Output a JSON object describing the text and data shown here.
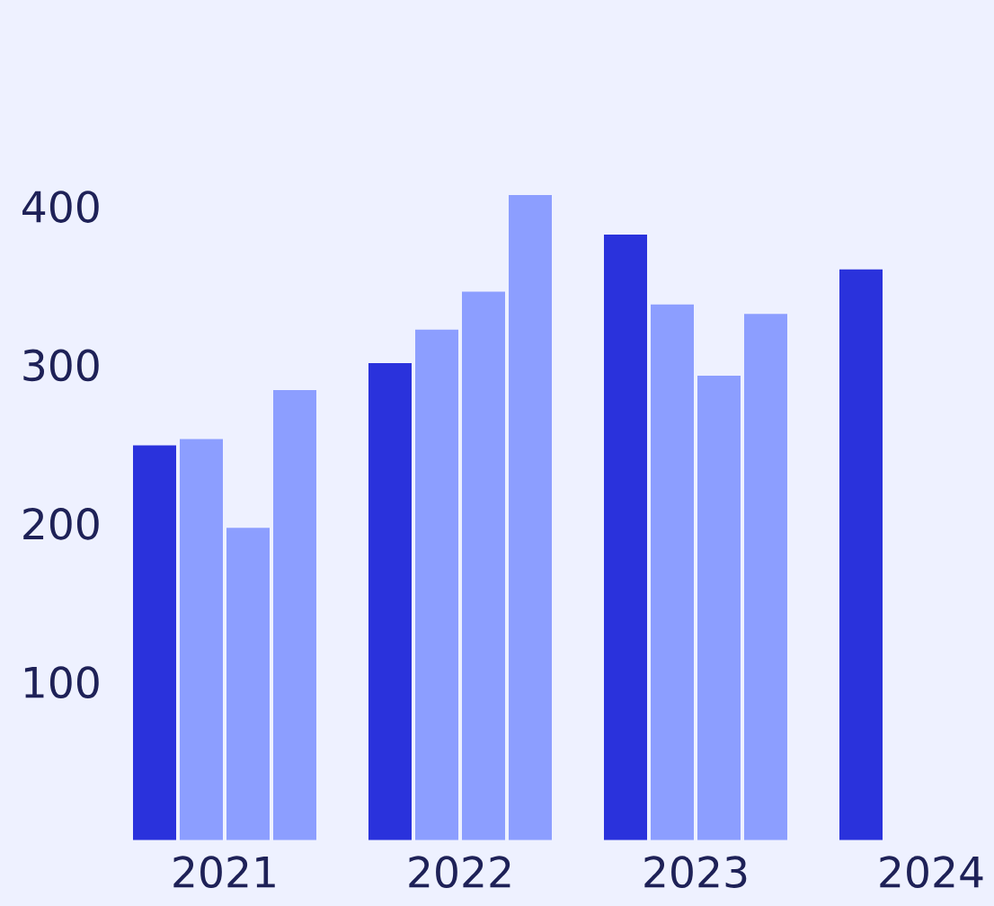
{
  "chart_data": {
    "type": "bar",
    "categories": [
      "2021",
      "2022",
      "2023",
      "2024"
    ],
    "series": [
      {
        "color": "#2a32dc",
        "values": [
          249,
          301,
          382,
          360
        ]
      },
      {
        "color": "#8c9eff",
        "values": [
          253,
          322,
          338,
          null
        ]
      },
      {
        "color": "#8c9eff",
        "values": [
          197,
          346,
          293,
          null
        ]
      },
      {
        "color": "#8c9eff",
        "values": [
          284,
          407,
          332,
          null
        ]
      }
    ],
    "ylim": [
      0,
      530
    ],
    "yticks": [
      100,
      200,
      300,
      400
    ],
    "grid": false
  }
}
